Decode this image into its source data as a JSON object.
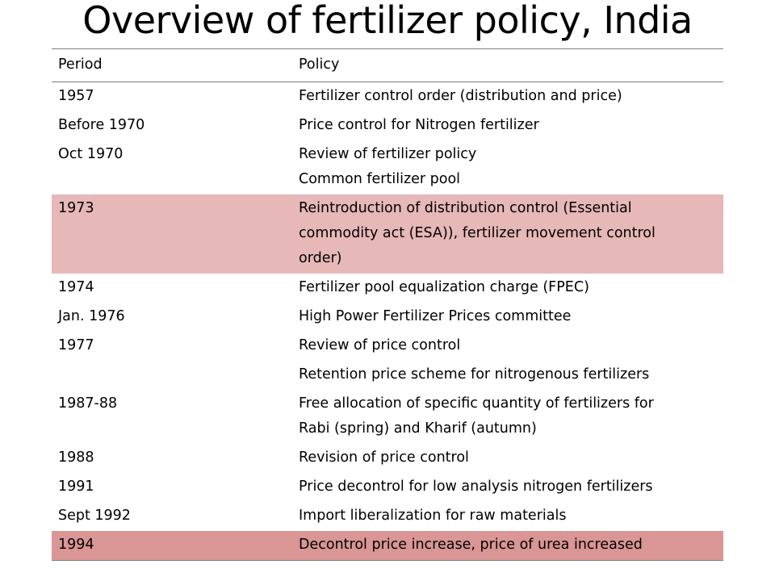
{
  "title": "Overview of fertilizer policy, India",
  "table": {
    "headers": {
      "period": "Period",
      "policy": "Policy"
    },
    "rows": [
      {
        "period": "1957",
        "policy": [
          "Fertilizer control order (distribution and price)"
        ],
        "highlight": "none"
      },
      {
        "period": "Before 1970",
        "policy": [
          "Price control  for Nitrogen fertilizer"
        ],
        "highlight": "none"
      },
      {
        "period": "Oct 1970",
        "policy": [
          "Review of fertilizer policy",
          "Common fertilizer pool"
        ],
        "highlight": "none"
      },
      {
        "period": "1973",
        "policy": [
          "Reintroduction of distribution control (Essential",
          "commodity act (ESA)), fertilizer movement control",
          "order)"
        ],
        "highlight": "light"
      },
      {
        "period": "1974",
        "policy": [
          "Fertilizer pool equalization charge (FPEC)"
        ],
        "highlight": "none"
      },
      {
        "period": "Jan. 1976",
        "policy": [
          "High Power Fertilizer Prices committee"
        ],
        "highlight": "none"
      },
      {
        "period": "1977",
        "policy": [
          "Review of price control"
        ],
        "highlight": "none"
      },
      {
        "period": "",
        "policy": [
          "Retention price scheme for nitrogenous fertilizers"
        ],
        "highlight": "none"
      },
      {
        "period": "1987-88",
        "policy": [
          "Free allocation of specific quantity of fertilizers for",
          "Rabi (spring) and Kharif (autumn)"
        ],
        "highlight": "none"
      },
      {
        "period": "1988",
        "policy": [
          "Revision of price control"
        ],
        "highlight": "none"
      },
      {
        "period": "1991",
        "policy": [
          "Price decontrol for low analysis nitrogen fertilizers"
        ],
        "highlight": "none"
      },
      {
        "period": "Sept 1992",
        "policy": [
          "Import liberalization for raw materials"
        ],
        "highlight": "none"
      },
      {
        "period": "1994",
        "policy": [
          "Decontrol price increase, price of urea increased"
        ],
        "highlight": "dark"
      }
    ]
  },
  "colors": {
    "highlight_light": "#e6b8b7",
    "highlight_dark": "#d99695",
    "rule": "#7f7f7f"
  }
}
